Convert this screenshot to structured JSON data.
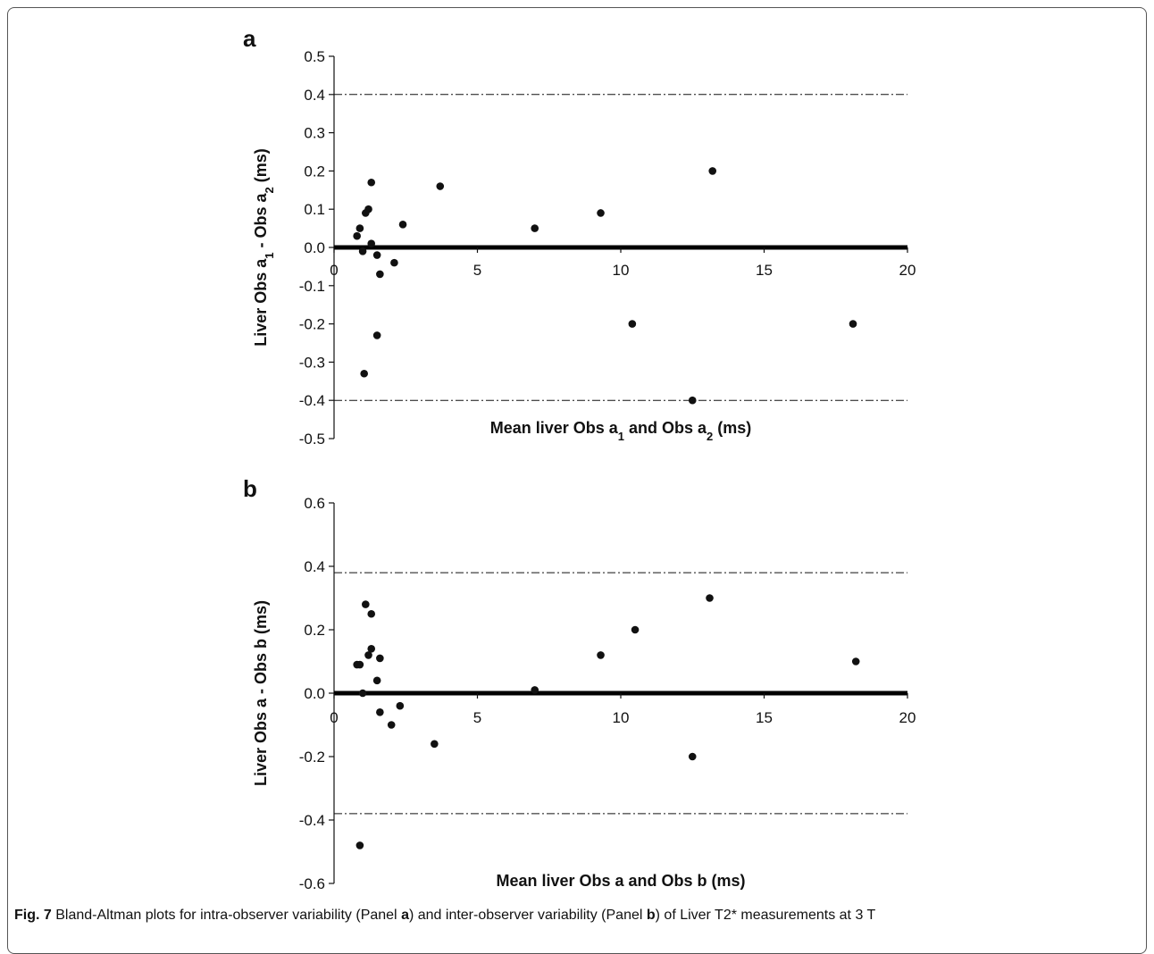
{
  "caption": {
    "fig_label": "Fig. 7",
    "t1": " Bland-Altman plots for intra-observer variability (Panel ",
    "a": "a",
    "t2": ") and inter-observer variability (Panel ",
    "b": "b",
    "t3": ") of Liver T2* measurements at 3 T"
  },
  "colors": {
    "points": "#111111",
    "axis": "#111111",
    "zero_line": "#000000",
    "limits": "#111111"
  },
  "chart_data": [
    {
      "panel_label": "a",
      "type": "scatter",
      "title": "",
      "xlabel": "Mean liver Obs a₁ and Obs a₂ (ms)",
      "ylabel": "Liver Obs a₁ - Obs a₂ (ms)",
      "xlim": [
        0,
        20
      ],
      "ylim": [
        -0.5,
        0.5
      ],
      "x_ticks": [
        "0",
        "5",
        "10",
        "15",
        "20"
      ],
      "y_ticks": [
        "0.5",
        "0.4",
        "0.3",
        "0.2",
        "0.1",
        "0.0",
        "-0.1",
        "-0.2",
        "-0.3",
        "-0.4",
        "-0.5"
      ],
      "limits_of_agreement": [
        0.4,
        -0.4
      ],
      "mean_difference": 0.0,
      "points": [
        {
          "x": 0.8,
          "y": 0.03
        },
        {
          "x": 0.9,
          "y": 0.05
        },
        {
          "x": 1.0,
          "y": -0.01
        },
        {
          "x": 1.05,
          "y": -0.33
        },
        {
          "x": 1.1,
          "y": 0.09
        },
        {
          "x": 1.2,
          "y": 0.1
        },
        {
          "x": 1.3,
          "y": 0.01
        },
        {
          "x": 1.3,
          "y": 0.17
        },
        {
          "x": 1.5,
          "y": -0.02
        },
        {
          "x": 1.5,
          "y": -0.23
        },
        {
          "x": 1.6,
          "y": -0.07
        },
        {
          "x": 2.1,
          "y": -0.04
        },
        {
          "x": 2.4,
          "y": 0.06
        },
        {
          "x": 3.7,
          "y": 0.16
        },
        {
          "x": 7.0,
          "y": 0.05
        },
        {
          "x": 9.3,
          "y": 0.09
        },
        {
          "x": 10.4,
          "y": -0.2
        },
        {
          "x": 12.5,
          "y": -0.4
        },
        {
          "x": 13.2,
          "y": 0.2
        },
        {
          "x": 18.1,
          "y": -0.2
        }
      ]
    },
    {
      "panel_label": "b",
      "type": "scatter",
      "title": "",
      "xlabel": "Mean liver Obs a and Obs b (ms)",
      "ylabel": "Liver Obs a - Obs b (ms)",
      "xlim": [
        0,
        20
      ],
      "ylim": [
        -0.6,
        0.6
      ],
      "x_ticks": [
        "0",
        "5",
        "10",
        "15",
        "20"
      ],
      "y_ticks": [
        "0.6",
        "0.4",
        "0.2",
        "0.0",
        "-0.2",
        "-0.4",
        "-0.6"
      ],
      "limits_of_agreement": [
        0.38,
        -0.38
      ],
      "mean_difference": 0.0,
      "points": [
        {
          "x": 0.8,
          "y": 0.09
        },
        {
          "x": 0.9,
          "y": 0.09
        },
        {
          "x": 0.9,
          "y": -0.48
        },
        {
          "x": 1.0,
          "y": 0.0
        },
        {
          "x": 1.1,
          "y": 0.28
        },
        {
          "x": 1.2,
          "y": 0.12
        },
        {
          "x": 1.3,
          "y": 0.25
        },
        {
          "x": 1.3,
          "y": 0.14
        },
        {
          "x": 1.5,
          "y": 0.04
        },
        {
          "x": 1.6,
          "y": -0.06
        },
        {
          "x": 1.6,
          "y": 0.11
        },
        {
          "x": 2.0,
          "y": -0.1
        },
        {
          "x": 2.3,
          "y": -0.04
        },
        {
          "x": 3.5,
          "y": -0.16
        },
        {
          "x": 7.0,
          "y": 0.01
        },
        {
          "x": 9.3,
          "y": 0.12
        },
        {
          "x": 10.5,
          "y": 0.2
        },
        {
          "x": 12.5,
          "y": -0.2
        },
        {
          "x": 13.1,
          "y": 0.3
        },
        {
          "x": 18.2,
          "y": 0.1
        }
      ]
    }
  ]
}
